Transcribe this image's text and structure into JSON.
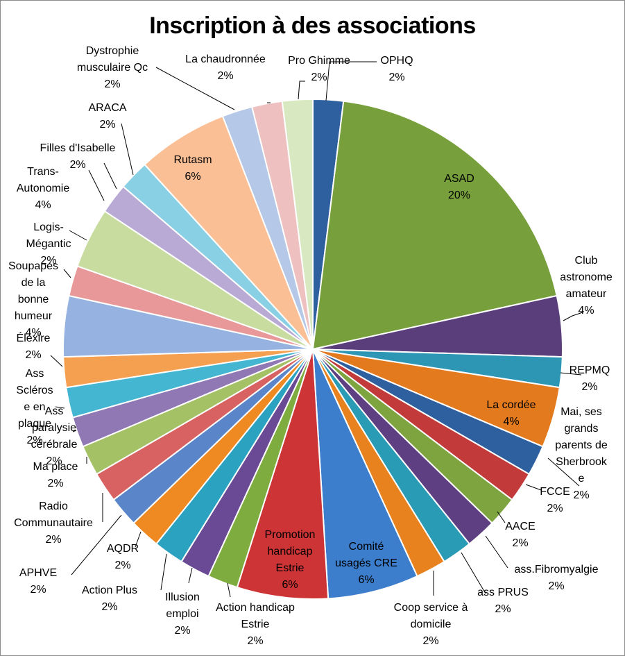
{
  "chart_data": {
    "type": "pie",
    "title": "Inscription à des associations",
    "slices": [
      {
        "name": "OPHQ",
        "value": 2,
        "label": "2%",
        "color": "#2e5f9e"
      },
      {
        "name": "ASAD",
        "value": 20,
        "label": "20%",
        "color": "#77a03c"
      },
      {
        "name": "Club astronome amateur",
        "value": 4,
        "label": "4%",
        "color": "#5a3e7c"
      },
      {
        "name": "REPMQ",
        "value": 2,
        "label": "2%",
        "color": "#2d96b5"
      },
      {
        "name": "La cordée",
        "value": 4,
        "label": "4%",
        "color": "#e37a1e"
      },
      {
        "name": "Mai, ses grands parents de Sherbrooke",
        "value": 2,
        "label": "2%",
        "color": "#2e5f9e"
      },
      {
        "name": "FCCE",
        "value": 2,
        "label": "2%",
        "color": "#c23a3a"
      },
      {
        "name": "AACE",
        "value": 2,
        "label": "2%",
        "color": "#7da43f"
      },
      {
        "name": "ass.Fibromyalgie",
        "value": 2,
        "label": "2%",
        "color": "#5d3f82"
      },
      {
        "name": "ass PRUS",
        "value": 2,
        "label": "2%",
        "color": "#2a9bb5"
      },
      {
        "name": "Coop service à domicile",
        "value": 2,
        "label": "2%",
        "color": "#e8821f"
      },
      {
        "name": "Comité usagés CRE",
        "value": 6,
        "label": "6%",
        "color": "#3c7dcc"
      },
      {
        "name": "Promotion handicap Estrie",
        "value": 6,
        "label": "6%",
        "color": "#cc3435"
      },
      {
        "name": "Action handicap Estrie",
        "value": 2,
        "label": "2%",
        "color": "#7fac3f"
      },
      {
        "name": "Illusion emploi",
        "value": 2,
        "label": "2%",
        "color": "#6a4a94"
      },
      {
        "name": "Action Plus",
        "value": 2,
        "label": "2%",
        "color": "#2ba2c0"
      },
      {
        "name": "AQDR",
        "value": 2,
        "label": "2%",
        "color": "#ef8a22"
      },
      {
        "name": "APHVE",
        "value": 2,
        "label": "2%",
        "color": "#5a86c9"
      },
      {
        "name": "Radio Communautaire",
        "value": 2,
        "label": "2%",
        "color": "#d86262"
      },
      {
        "name": "Ma place",
        "value": 2,
        "label": "2%",
        "color": "#a4c265"
      },
      {
        "name": "Ass paralysie cérébrale",
        "value": 2,
        "label": "2%",
        "color": "#8f78b4"
      },
      {
        "name": "Ass Scléros e en plaque",
        "value": 2,
        "label": "2%",
        "color": "#45b6d2"
      },
      {
        "name": "Élexire",
        "value": 2,
        "label": "2%",
        "color": "#f5a050"
      },
      {
        "name": "Soupapes de la bonne humeur",
        "value": 4,
        "label": "4%",
        "color": "#96b2e0"
      },
      {
        "name": "Logis-Mégantic",
        "value": 2,
        "label": "2%",
        "color": "#e89898"
      },
      {
        "name": "Trans-Autonomie",
        "value": 4,
        "label": "4%",
        "color": "#c8dca0"
      },
      {
        "name": "Filles d'Isabelle",
        "value": 2,
        "label": "2%",
        "color": "#b8aad4"
      },
      {
        "name": "ARACA",
        "value": 2,
        "label": "2%",
        "color": "#8ad0e4"
      },
      {
        "name": "Rutasm",
        "value": 6,
        "label": "6%",
        "color": "#fbbf96"
      },
      {
        "name": "Dystrophie musculaire Qc",
        "value": 2,
        "label": "2%",
        "color": "#b6c8e8"
      },
      {
        "name": "La chaudronnée",
        "value": 2,
        "label": "2%",
        "color": "#eec0c0"
      },
      {
        "name": "Pro Ghimme",
        "value": 2,
        "label": "2%",
        "color": "#d8e8c0"
      }
    ]
  }
}
